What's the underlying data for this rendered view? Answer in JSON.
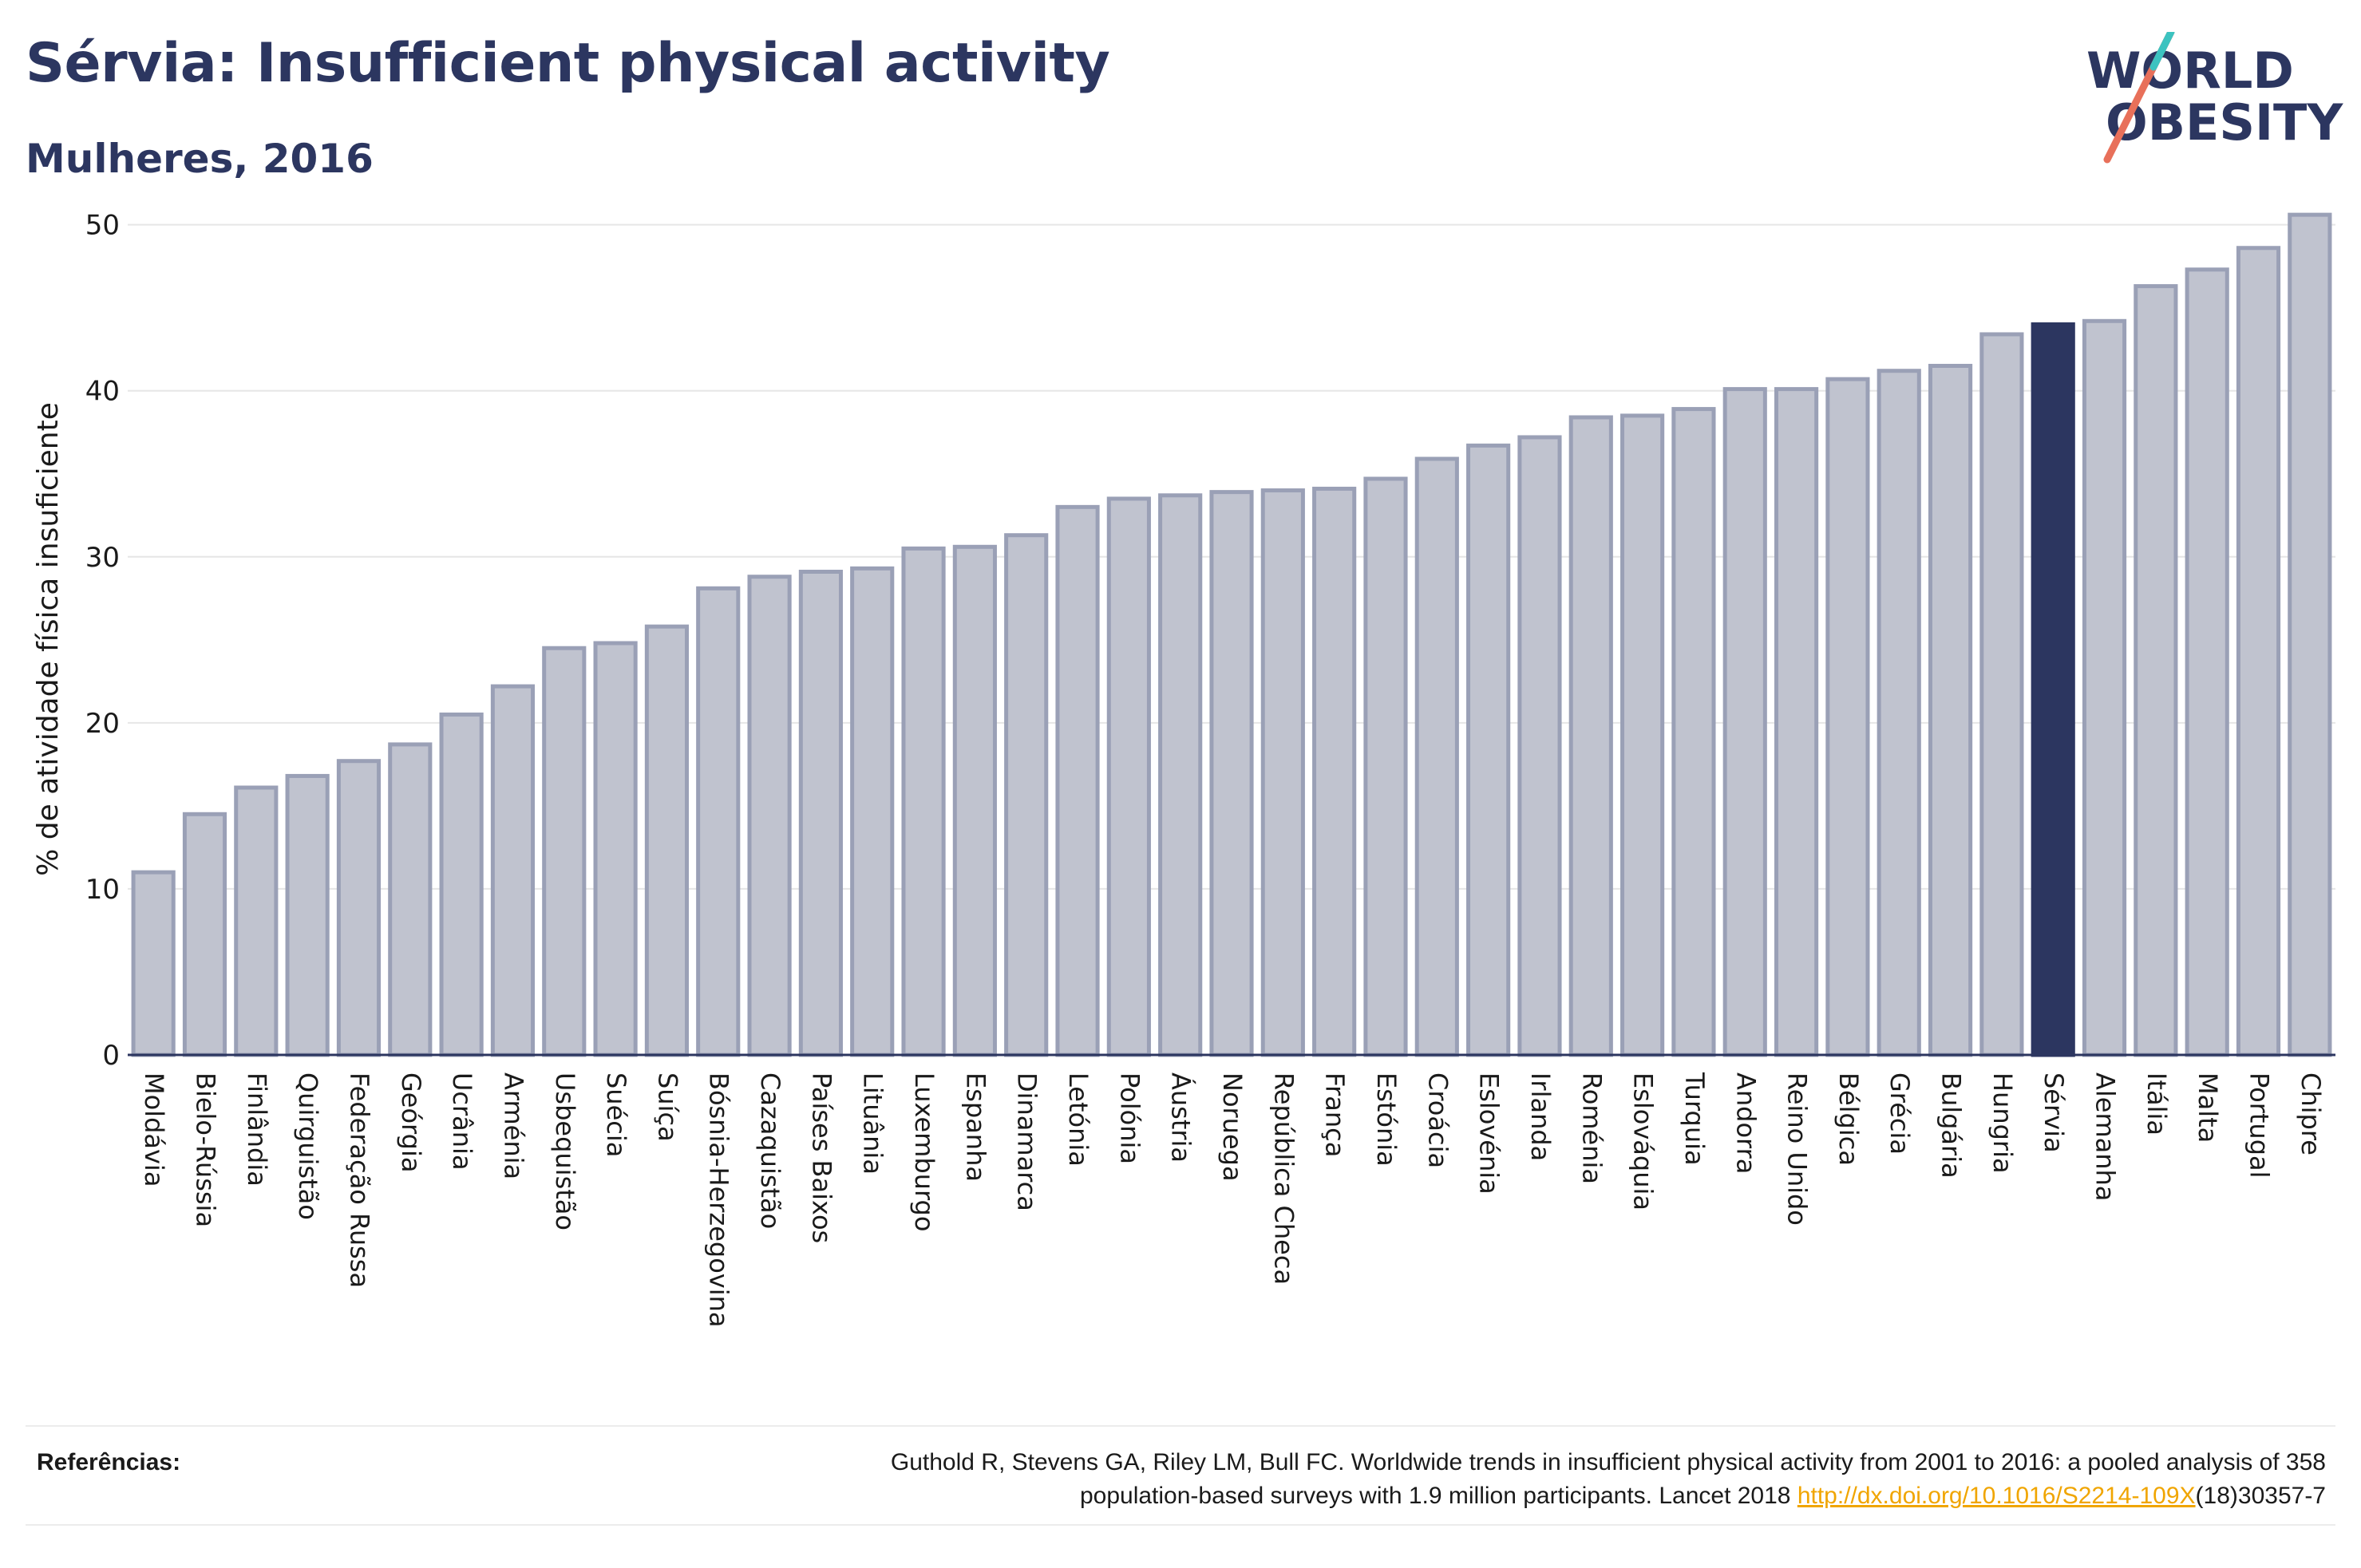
{
  "header": {
    "title": "Sérvia: Insufficient physical activity",
    "subtitle": "Mulheres, 2016"
  },
  "logo": {
    "line1": "WORLD",
    "line2": "OBESITY"
  },
  "colors": {
    "bar_fill": "#c0c3cf",
    "bar_stroke": "#9aa0b6",
    "highlight": "#2c3660",
    "title": "#2c3660",
    "link": "#f0a500"
  },
  "chart_data": {
    "type": "bar",
    "ylabel": "% de atividade física insuficiente",
    "ylim": [
      0,
      52
    ],
    "yticks": [
      0,
      10,
      20,
      30,
      40,
      50
    ],
    "grid": true,
    "highlight": "Sérvia",
    "categories": [
      "Moldávia",
      "Bielo-Rússia",
      "Finlândia",
      "Quirguistão",
      "Federação Russa",
      "Geórgia",
      "Ucrânia",
      "Arménia",
      "Usbequistão",
      "Suécia",
      "Suíça",
      "Bósnia-Herzegovina",
      "Cazaquistão",
      "Países Baixos",
      "Lituânia",
      "Luxemburgo",
      "Espanha",
      "Dinamarca",
      "Letónia",
      "Polónia",
      "Áustria",
      "Noruega",
      "República Checa",
      "França",
      "Estónia",
      "Croácia",
      "Eslovénia",
      "Irlanda",
      "Roménia",
      "Eslováquia",
      "Turquia",
      "Andorra",
      "Reino Unido",
      "Bélgica",
      "Grécia",
      "Bulgária",
      "Hungria",
      "Sérvia",
      "Alemanha",
      "Itália",
      "Malta",
      "Portugal",
      "Chipre"
    ],
    "values": [
      11.0,
      14.5,
      16.1,
      16.8,
      17.7,
      18.7,
      20.5,
      22.2,
      24.5,
      24.8,
      25.8,
      28.1,
      28.8,
      29.1,
      29.3,
      30.5,
      30.6,
      31.3,
      33.0,
      33.5,
      33.7,
      33.9,
      34.0,
      34.1,
      34.7,
      35.9,
      36.7,
      37.2,
      38.4,
      38.5,
      38.9,
      40.1,
      40.1,
      40.7,
      41.2,
      41.5,
      43.4,
      44.0,
      44.2,
      46.3,
      47.3,
      48.6,
      50.6
    ]
  },
  "references": {
    "label": "Referências:",
    "text_line1": "Guthold R, Stevens GA, Riley LM, Bull FC. Worldwide trends in insufficient physical activity from 2001 to 2016: a pooled analysis of 358",
    "text_line2": "population-based surveys with 1.9 million participants. Lancet 2018",
    "link": "http://dx.doi.org/10.1016/S2214-109X",
    "suffix": "(18)30357-7"
  }
}
